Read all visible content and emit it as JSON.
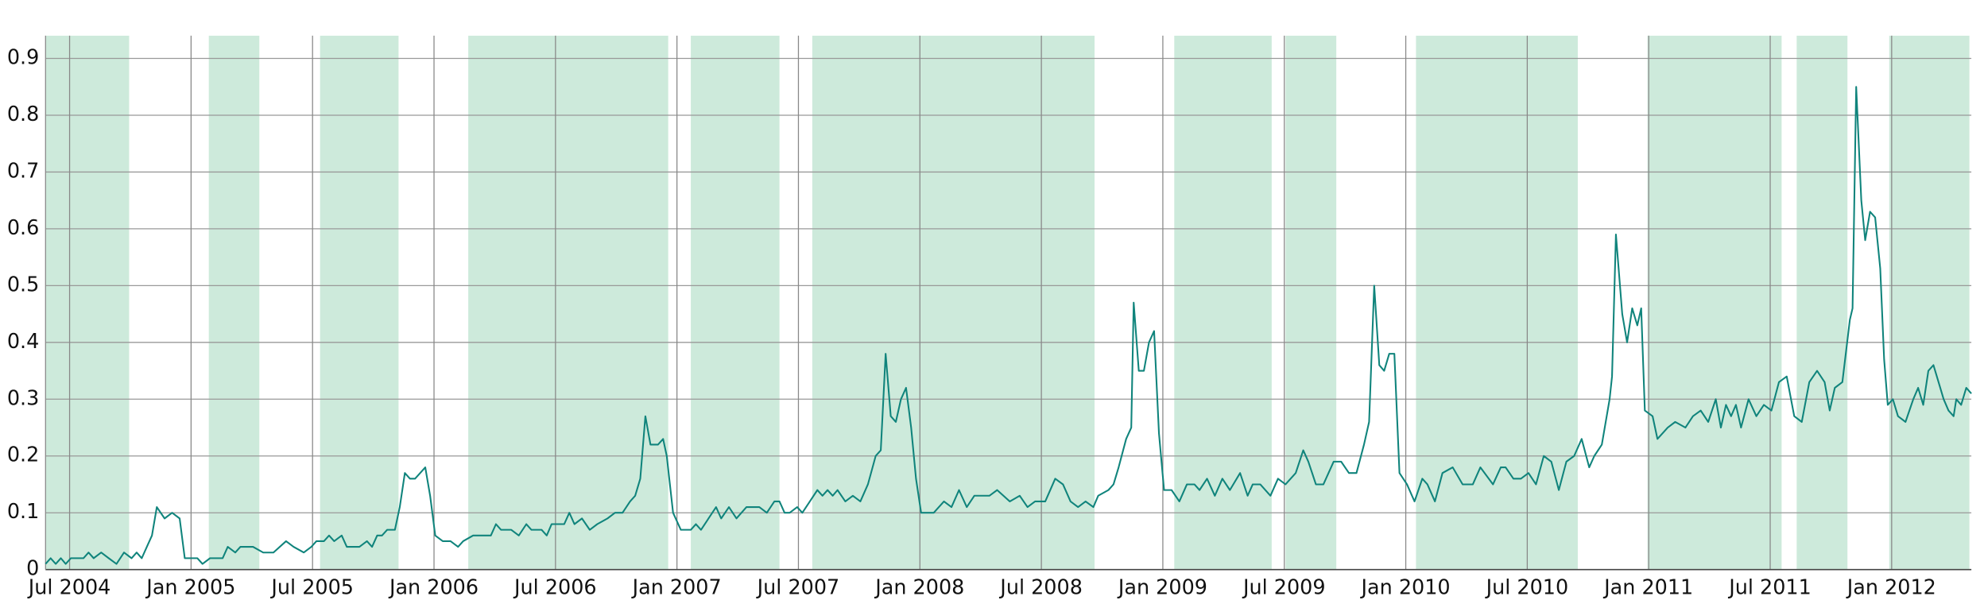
{
  "chart_data": {
    "type": "line",
    "x": [
      2004.401,
      2004.422,
      2004.443,
      2004.464,
      2004.484,
      2004.505,
      2004.557,
      2004.578,
      2004.599,
      2004.63,
      2004.661,
      2004.693,
      2004.724,
      2004.755,
      2004.776,
      2004.797,
      2004.818,
      2004.839,
      2004.859,
      2004.891,
      2004.922,
      2004.953,
      2004.974,
      2005.026,
      2005.047,
      2005.078,
      2005.13,
      2005.151,
      2005.182,
      2005.203,
      2005.224,
      2005.255,
      2005.297,
      2005.339,
      2005.391,
      2005.422,
      2005.464,
      2005.495,
      2005.516,
      2005.547,
      2005.568,
      2005.589,
      2005.62,
      2005.641,
      2005.693,
      2005.724,
      2005.745,
      2005.766,
      2005.786,
      2005.807,
      2005.839,
      2005.859,
      2005.88,
      2005.901,
      2005.922,
      2005.943,
      2005.964,
      2005.984,
      2006.005,
      2006.036,
      2006.068,
      2006.099,
      2006.12,
      2006.161,
      2006.234,
      2006.255,
      2006.276,
      2006.318,
      2006.349,
      2006.38,
      2006.401,
      2006.443,
      2006.464,
      2006.484,
      2006.536,
      2006.557,
      2006.578,
      2006.609,
      2006.641,
      2006.672,
      2006.714,
      2006.745,
      2006.776,
      2006.807,
      2006.828,
      2006.849,
      2006.87,
      2006.891,
      2006.922,
      2006.943,
      2006.958,
      2006.984,
      2007.016,
      2007.057,
      2007.078,
      2007.099,
      2007.13,
      2007.161,
      2007.182,
      2007.214,
      2007.245,
      2007.286,
      2007.339,
      2007.37,
      2007.401,
      2007.422,
      2007.443,
      2007.464,
      2007.495,
      2007.516,
      2007.547,
      2007.578,
      2007.599,
      2007.62,
      2007.641,
      2007.661,
      2007.693,
      2007.724,
      2007.755,
      2007.786,
      2007.818,
      2007.839,
      2007.859,
      2007.88,
      2007.901,
      2007.922,
      2007.943,
      2007.964,
      2007.984,
      2008.005,
      2008.057,
      2008.099,
      2008.13,
      2008.161,
      2008.193,
      2008.224,
      2008.286,
      2008.318,
      2008.37,
      2008.411,
      2008.443,
      2008.474,
      2008.516,
      2008.557,
      2008.589,
      2008.62,
      2008.651,
      2008.682,
      2008.714,
      2008.734,
      2008.776,
      2008.797,
      2008.818,
      2008.849,
      2008.87,
      2008.88,
      2008.901,
      2008.922,
      2008.943,
      2008.964,
      2008.984,
      2009.005,
      2009.036,
      2009.068,
      2009.099,
      2009.13,
      2009.151,
      2009.182,
      2009.214,
      2009.245,
      2009.276,
      2009.318,
      2009.349,
      2009.37,
      2009.401,
      2009.443,
      2009.474,
      2009.505,
      2009.547,
      2009.578,
      2009.599,
      2009.63,
      2009.661,
      2009.703,
      2009.734,
      2009.766,
      2009.797,
      2009.828,
      2009.849,
      2009.87,
      2009.891,
      2009.911,
      2009.932,
      2009.953,
      2009.974,
      2010.005,
      2010.036,
      2010.068,
      2010.089,
      2010.12,
      2010.151,
      2010.193,
      2010.234,
      2010.276,
      2010.307,
      2010.359,
      2010.391,
      2010.411,
      2010.443,
      2010.474,
      2010.505,
      2010.536,
      2010.568,
      2010.599,
      2010.63,
      2010.661,
      2010.693,
      2010.724,
      2010.755,
      2010.776,
      2010.807,
      2010.839,
      2010.849,
      2010.865,
      2010.891,
      2010.911,
      2010.932,
      2010.953,
      2010.969,
      2010.984,
      2011.016,
      2011.036,
      2011.078,
      2011.109,
      2011.151,
      2011.182,
      2011.214,
      2011.245,
      2011.276,
      2011.297,
      2011.318,
      2011.339,
      2011.359,
      2011.38,
      2011.411,
      2011.443,
      2011.474,
      2011.505,
      2011.536,
      2011.568,
      2011.599,
      2011.63,
      2011.661,
      2011.693,
      2011.724,
      2011.745,
      2011.766,
      2011.797,
      2011.828,
      2011.839,
      2011.854,
      2011.875,
      2011.891,
      2011.911,
      2011.932,
      2011.953,
      2011.969,
      2011.984,
      2012.005,
      2012.026,
      2012.057,
      2012.089,
      2012.109,
      2012.13,
      2012.151,
      2012.172,
      2012.193,
      2012.214,
      2012.234,
      2012.255,
      2012.266,
      2012.286,
      2012.307,
      2012.328
    ],
    "series": [
      {
        "color": "#10847c",
        "values": [
          0.01,
          0.02,
          0.01,
          0.02,
          0.01,
          0.02,
          0.02,
          0.03,
          0.02,
          0.03,
          0.02,
          0.01,
          0.03,
          0.02,
          0.03,
          0.02,
          0.04,
          0.06,
          0.11,
          0.09,
          0.1,
          0.09,
          0.02,
          0.02,
          0.01,
          0.02,
          0.02,
          0.04,
          0.03,
          0.04,
          0.04,
          0.04,
          0.03,
          0.03,
          0.05,
          0.04,
          0.03,
          0.04,
          0.05,
          0.05,
          0.06,
          0.05,
          0.06,
          0.04,
          0.04,
          0.05,
          0.04,
          0.06,
          0.06,
          0.07,
          0.07,
          0.11,
          0.17,
          0.16,
          0.16,
          0.17,
          0.18,
          0.13,
          0.06,
          0.05,
          0.05,
          0.04,
          0.05,
          0.06,
          0.06,
          0.08,
          0.07,
          0.07,
          0.06,
          0.08,
          0.07,
          0.07,
          0.06,
          0.08,
          0.08,
          0.1,
          0.08,
          0.09,
          0.07,
          0.08,
          0.09,
          0.1,
          0.1,
          0.12,
          0.13,
          0.16,
          0.27,
          0.22,
          0.22,
          0.23,
          0.2,
          0.1,
          0.07,
          0.07,
          0.08,
          0.07,
          0.09,
          0.11,
          0.09,
          0.11,
          0.09,
          0.11,
          0.11,
          0.1,
          0.12,
          0.12,
          0.1,
          0.1,
          0.11,
          0.1,
          0.12,
          0.14,
          0.13,
          0.14,
          0.13,
          0.14,
          0.12,
          0.13,
          0.12,
          0.15,
          0.2,
          0.21,
          0.38,
          0.27,
          0.26,
          0.3,
          0.32,
          0.25,
          0.16,
          0.1,
          0.1,
          0.12,
          0.11,
          0.14,
          0.11,
          0.13,
          0.13,
          0.14,
          0.12,
          0.13,
          0.11,
          0.12,
          0.12,
          0.16,
          0.15,
          0.12,
          0.11,
          0.12,
          0.11,
          0.13,
          0.14,
          0.15,
          0.18,
          0.23,
          0.25,
          0.47,
          0.35,
          0.35,
          0.4,
          0.42,
          0.24,
          0.14,
          0.14,
          0.12,
          0.15,
          0.15,
          0.14,
          0.16,
          0.13,
          0.16,
          0.14,
          0.17,
          0.13,
          0.15,
          0.15,
          0.13,
          0.16,
          0.15,
          0.17,
          0.21,
          0.19,
          0.15,
          0.15,
          0.19,
          0.19,
          0.17,
          0.17,
          0.22,
          0.26,
          0.5,
          0.36,
          0.35,
          0.38,
          0.38,
          0.17,
          0.15,
          0.12,
          0.16,
          0.15,
          0.12,
          0.17,
          0.18,
          0.15,
          0.15,
          0.18,
          0.15,
          0.18,
          0.18,
          0.16,
          0.16,
          0.17,
          0.15,
          0.2,
          0.19,
          0.14,
          0.19,
          0.2,
          0.23,
          0.18,
          0.2,
          0.22,
          0.3,
          0.34,
          0.59,
          0.45,
          0.4,
          0.46,
          0.43,
          0.46,
          0.28,
          0.27,
          0.23,
          0.25,
          0.26,
          0.25,
          0.27,
          0.28,
          0.26,
          0.3,
          0.25,
          0.29,
          0.27,
          0.29,
          0.25,
          0.3,
          0.27,
          0.29,
          0.28,
          0.33,
          0.34,
          0.27,
          0.26,
          0.33,
          0.35,
          0.33,
          0.28,
          0.32,
          0.33,
          0.44,
          0.46,
          0.85,
          0.65,
          0.58,
          0.63,
          0.62,
          0.53,
          0.37,
          0.29,
          0.3,
          0.27,
          0.26,
          0.3,
          0.32,
          0.29,
          0.35,
          0.36,
          0.33,
          0.3,
          0.28,
          0.27,
          0.3,
          0.29,
          0.32,
          0.31
        ]
      }
    ],
    "shaded_ranges": [
      [
        2004.401,
        2004.745
      ],
      [
        2005.073,
        2005.281
      ],
      [
        2005.531,
        2005.854
      ],
      [
        2006.141,
        2006.964
      ],
      [
        2007.057,
        2007.422
      ],
      [
        2007.557,
        2008.719
      ],
      [
        2009.047,
        2009.448
      ],
      [
        2009.505,
        2009.714
      ],
      [
        2010.042,
        2010.708
      ],
      [
        2010.995,
        2011.547
      ],
      [
        2011.609,
        2011.818
      ],
      [
        2011.99,
        2012.32
      ]
    ],
    "shade_color": "#cdeadb",
    "xlim": [
      2004.401,
      2012.328
    ],
    "xticks": [
      {
        "value": 2004.5,
        "label": "Jul 2004"
      },
      {
        "value": 2005.0,
        "label": "Jan 2005"
      },
      {
        "value": 2005.5,
        "label": "Jul 2005"
      },
      {
        "value": 2006.0,
        "label": "Jan 2006"
      },
      {
        "value": 2006.5,
        "label": "Jul 2006"
      },
      {
        "value": 2007.0,
        "label": "Jan 2007"
      },
      {
        "value": 2007.5,
        "label": "Jul 2007"
      },
      {
        "value": 2008.0,
        "label": "Jan 2008"
      },
      {
        "value": 2008.5,
        "label": "Jul 2008"
      },
      {
        "value": 2009.0,
        "label": "Jan 2009"
      },
      {
        "value": 2009.5,
        "label": "Jul 2009"
      },
      {
        "value": 2010.0,
        "label": "Jan 2010"
      },
      {
        "value": 2010.5,
        "label": "Jul 2010"
      },
      {
        "value": 2011.0,
        "label": "Jan 2011"
      },
      {
        "value": 2011.5,
        "label": "Jul 2011"
      },
      {
        "value": 2012.0,
        "label": "Jan 2012"
      }
    ],
    "ylim": [
      0,
      0.94
    ],
    "yticks": [
      0,
      0.1,
      0.2,
      0.3,
      0.4,
      0.5,
      0.6,
      0.7,
      0.8,
      0.9
    ],
    "grid": true
  }
}
